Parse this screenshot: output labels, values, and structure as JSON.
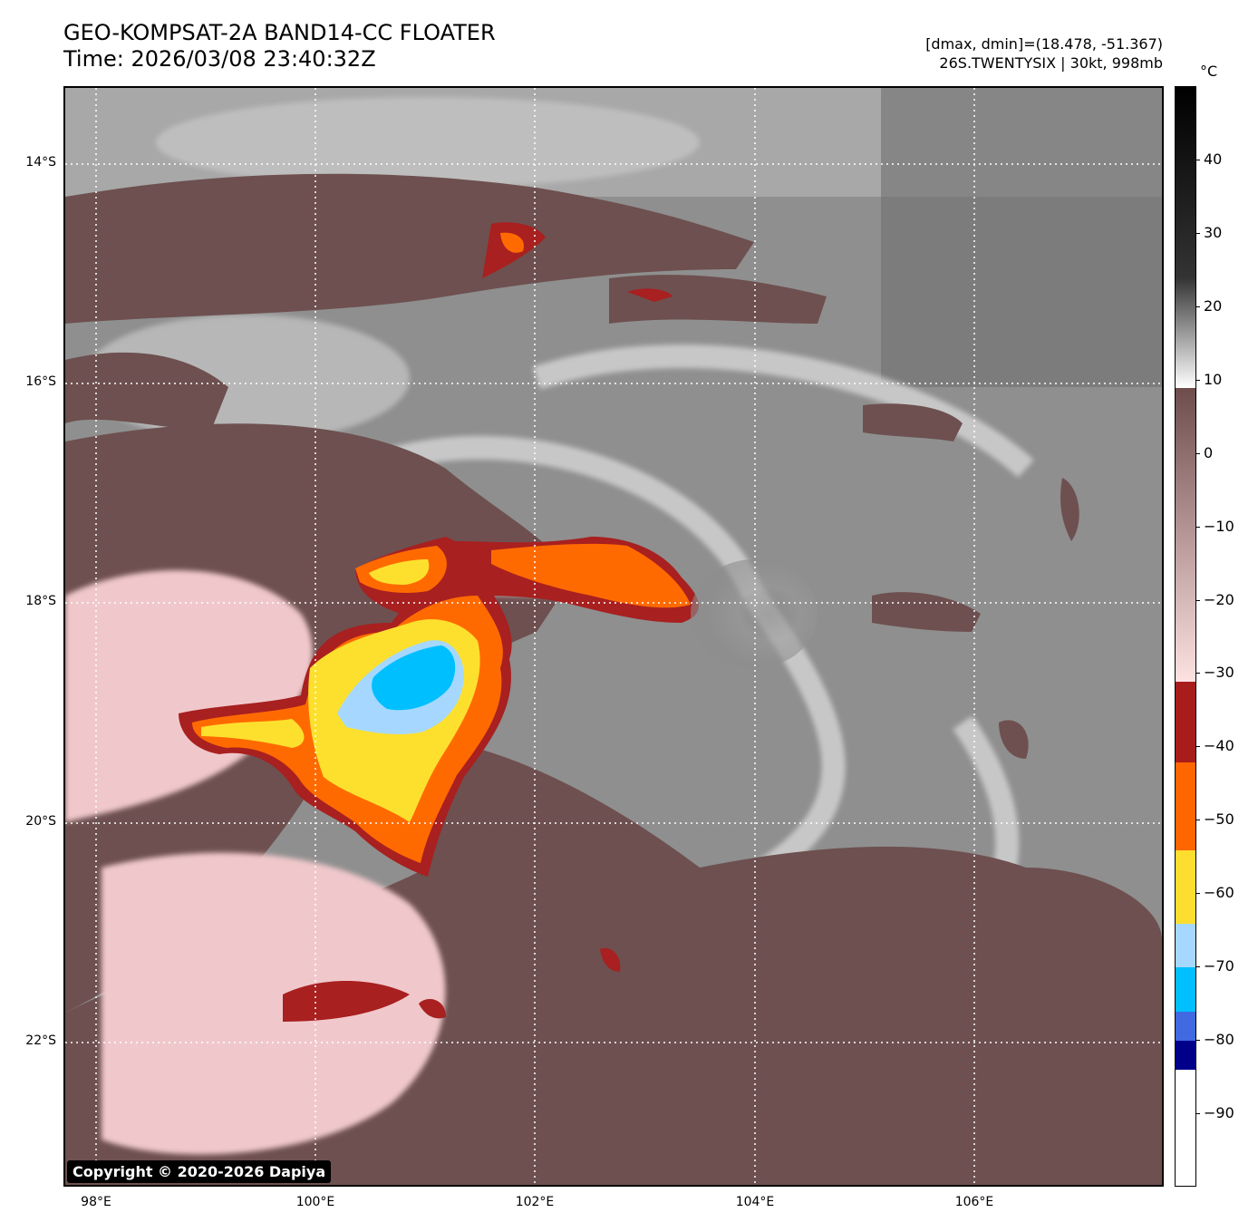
{
  "header": {
    "title_line1": "GEO-KOMPSAT-2A BAND14-CC FLOATER",
    "title_line2": "Time: 2026/03/08 23:40:32Z",
    "info_line1": "[dmax, dmin]=(18.478, -51.367)",
    "info_line2": "26S.TWENTYSIX | 30kt, 998mb"
  },
  "map": {
    "lat_labels": [
      "14°S",
      "16°S",
      "18°S",
      "20°S",
      "22°S"
    ],
    "lon_labels": [
      "98°E",
      "100°E",
      "102°E",
      "104°E",
      "106°E"
    ],
    "copyright": "Copyright © 2020-2026 Dapiya",
    "colors": {
      "clear": "#8c8c8c",
      "warm_cloud": "#6e5050",
      "cold_cloud": "#f2c9cc",
      "red": "#a82020",
      "orange": "#ff6a00",
      "yellow": "#fde02e",
      "light_blue": "#a6d8ff",
      "cyan": "#00bfff"
    }
  },
  "colorbar": {
    "unit": "°C",
    "ticks": [
      "40",
      "30",
      "20",
      "10",
      "0",
      "−10",
      "−20",
      "−30",
      "−40",
      "−50",
      "−60",
      "−70",
      "−80",
      "−90"
    ],
    "tick_values": [
      40,
      30,
      20,
      10,
      0,
      -10,
      -20,
      -30,
      -40,
      -50,
      -60,
      -70,
      -80,
      -90
    ],
    "range": [
      -100,
      50
    ],
    "segments": [
      {
        "from": 50,
        "to": 24,
        "color_top": "#000000",
        "color_bottom": "#333333"
      },
      {
        "from": 24,
        "to": 9,
        "color_top": "#333333",
        "color_bottom": "#ffffff"
      },
      {
        "from": 9,
        "to": -31,
        "color_top": "#6e4c4c",
        "color_bottom": "#fde2e2"
      },
      {
        "from": -31,
        "to": -42,
        "color_top": "#a81c1c",
        "color_bottom": "#a81c1c"
      },
      {
        "from": -42,
        "to": -54,
        "color_top": "#ff6600",
        "color_bottom": "#ff6600"
      },
      {
        "from": -54,
        "to": -64,
        "color_top": "#fddd2e",
        "color_bottom": "#fddd2e"
      },
      {
        "from": -64,
        "to": -70,
        "color_top": "#a6d8ff",
        "color_bottom": "#a6d8ff"
      },
      {
        "from": -70,
        "to": -76,
        "color_top": "#00bfff",
        "color_bottom": "#00bfff"
      },
      {
        "from": -76,
        "to": -80,
        "color_top": "#4169e1",
        "color_bottom": "#4169e1"
      },
      {
        "from": -80,
        "to": -84,
        "color_top": "#00008b",
        "color_bottom": "#00008b"
      },
      {
        "from": -84,
        "to": -100,
        "color_top": "#ffffff",
        "color_bottom": "#ffffff"
      }
    ]
  }
}
